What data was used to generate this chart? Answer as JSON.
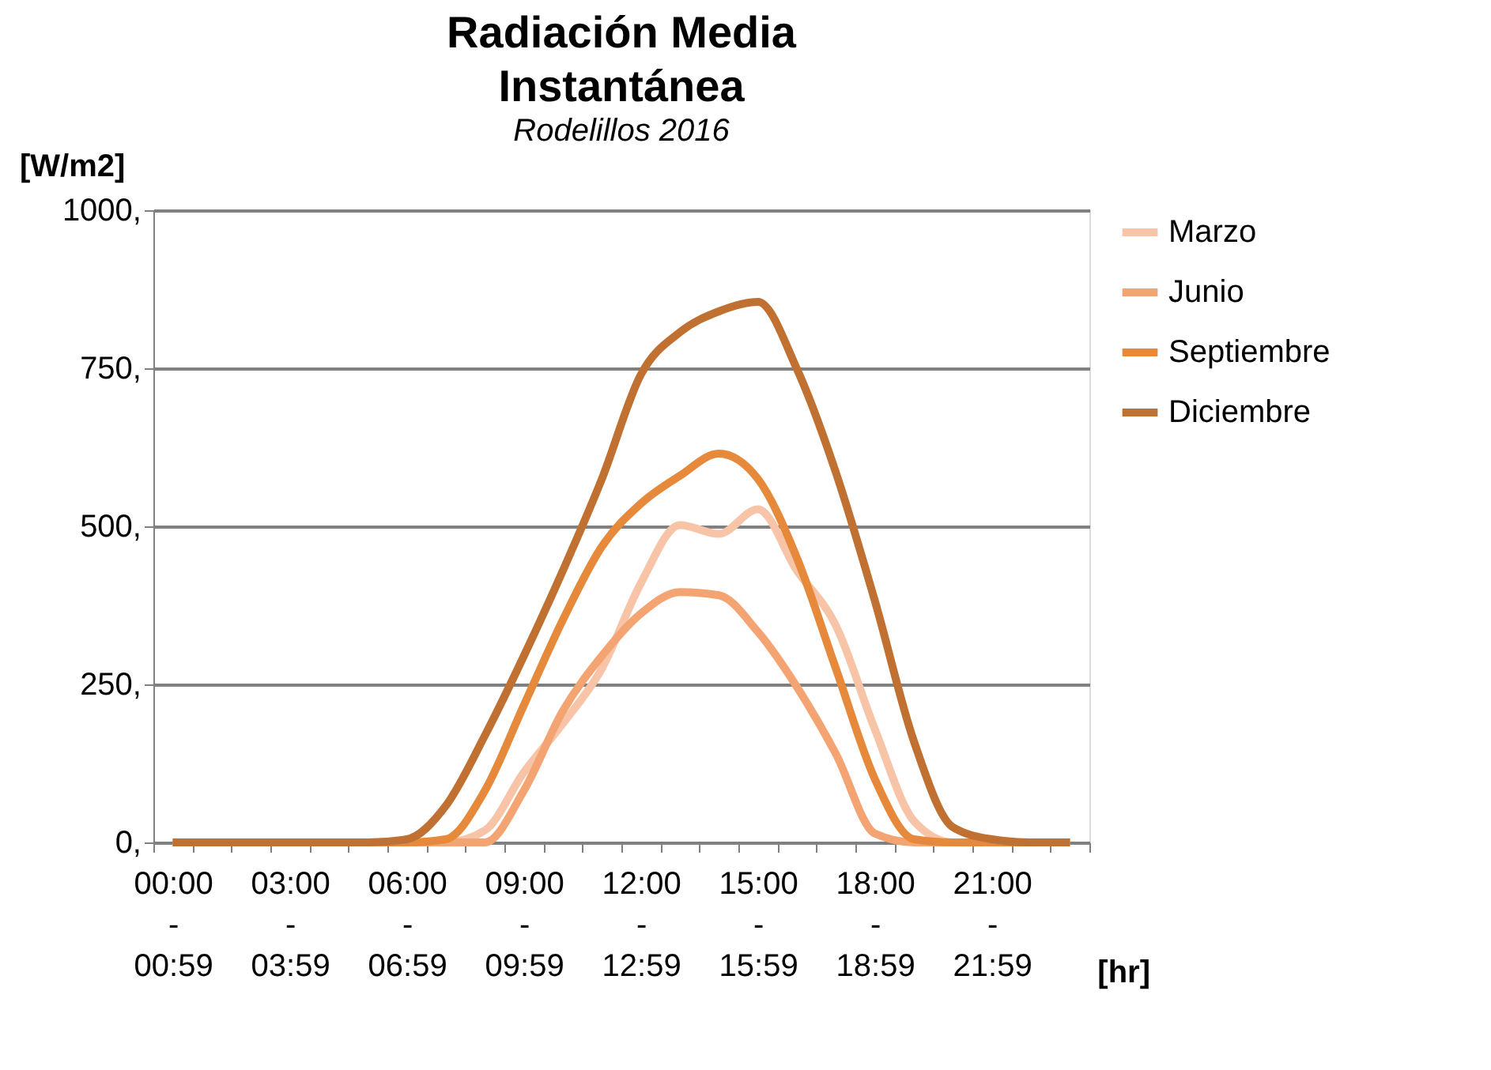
{
  "chart_data": {
    "type": "line",
    "title": "Radiación Media Instantánea",
    "subtitle": "Rodelillos 2016",
    "ylabel": "[W/m2]",
    "xlabel": "[hr]",
    "categories": [
      "00:00\n-\n00:59",
      null,
      null,
      "03:00\n-\n03:59",
      null,
      null,
      "06:00\n-\n06:59",
      null,
      null,
      "09:00\n-\n09:59",
      null,
      null,
      "12:00\n-\n12:59",
      null,
      null,
      "15:00\n-\n15:59",
      null,
      null,
      "18:00\n-\n18:59",
      null,
      null,
      "21:00\n-\n21:59",
      null,
      null
    ],
    "series": [
      {
        "name": "Marzo",
        "color": "#f8c4a8",
        "values": [
          0,
          0,
          0,
          0,
          0,
          0,
          0,
          0,
          19,
          111,
          188,
          275,
          410,
          502,
          488,
          527,
          430,
          343,
          179,
          34,
          0,
          0,
          0,
          0
        ]
      },
      {
        "name": "Junio",
        "color": "#f4a472",
        "values": [
          0,
          0,
          0,
          0,
          0,
          0,
          0,
          0,
          0,
          82,
          208,
          295,
          362,
          396,
          391,
          333,
          246,
          140,
          14,
          0,
          0,
          0,
          0,
          0
        ]
      },
      {
        "name": "Septiembre",
        "color": "#e6893a",
        "values": [
          0,
          0,
          0,
          0,
          0,
          0,
          0,
          5,
          82,
          217,
          352,
          468,
          536,
          580,
          615,
          575,
          450,
          275,
          100,
          5,
          0,
          0,
          0,
          0
        ]
      },
      {
        "name": "Diciembre",
        "color": "#c07030",
        "values": [
          0,
          0,
          0,
          0,
          0,
          0,
          5,
          58,
          169,
          295,
          430,
          575,
          740,
          807,
          840,
          855,
          749,
          585,
          382,
          160,
          24,
          5,
          0,
          0
        ]
      }
    ],
    "ylim": [
      0,
      1000
    ],
    "yticks": [
      {
        "value": 0,
        "label": "0,"
      },
      {
        "value": 250,
        "label": "250,"
      },
      {
        "value": 500,
        "label": "500,"
      },
      {
        "value": 750,
        "label": "750,"
      },
      {
        "value": 1000,
        "label": "1000,"
      }
    ],
    "grid": "y",
    "legend": "right",
    "line_style": "solid",
    "marker": "none"
  }
}
